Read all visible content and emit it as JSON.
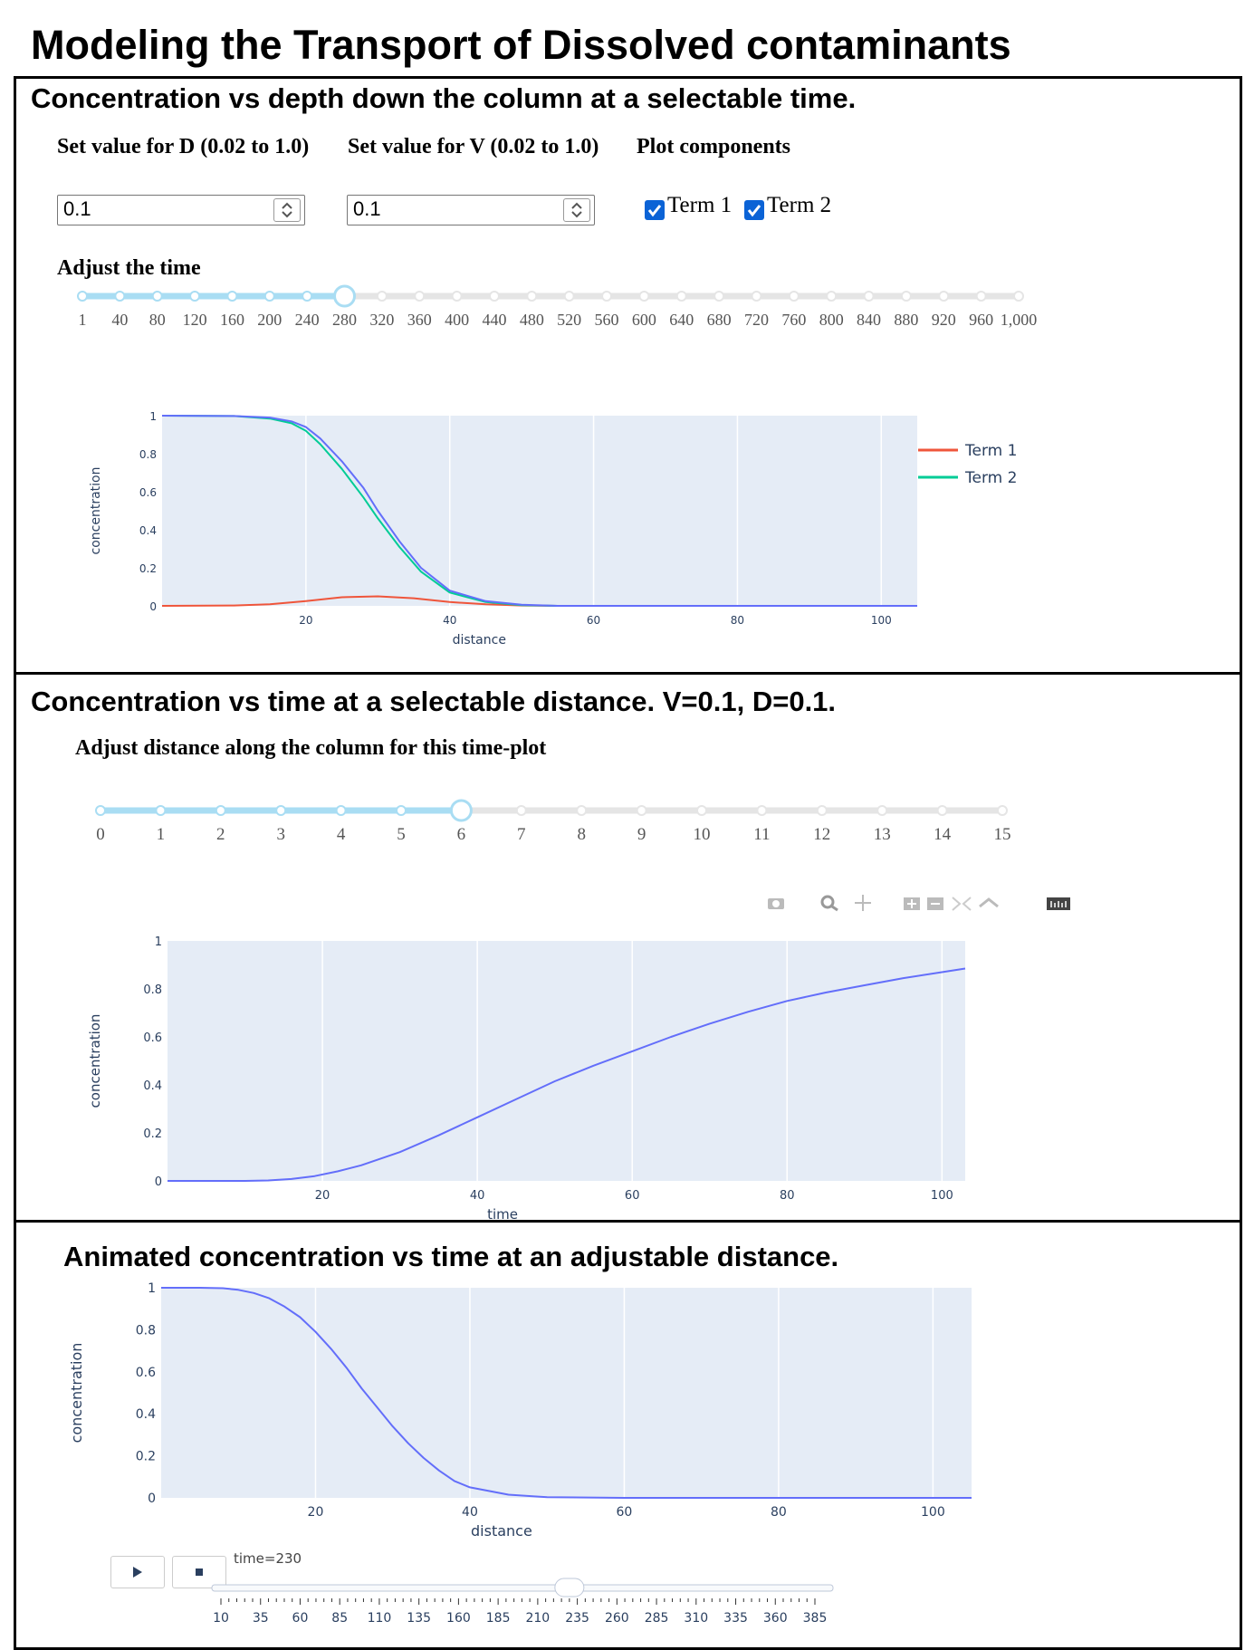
{
  "page_title": "Modeling the Transport of Dissolved contaminants",
  "panel1": {
    "title": "Concentration vs depth down the column at a selectable time.",
    "d_label": "Set value for D (0.02 to 1.0)",
    "v_label": "Set value for V (0.02 to 1.0)",
    "components_label": "Plot components",
    "d_value": "0.1",
    "v_value": "0.1",
    "term1_label": "Term 1",
    "term2_label": "Term 2",
    "term1_checked": true,
    "term2_checked": true,
    "time_label": "Adjust the time",
    "time_slider": {
      "ticks": [
        "1",
        "40",
        "80",
        "120",
        "160",
        "200",
        "240",
        "280",
        "320",
        "360",
        "400",
        "440",
        "480",
        "520",
        "560",
        "600",
        "640",
        "680",
        "720",
        "760",
        "800",
        "840",
        "880",
        "920",
        "960",
        "1,000"
      ],
      "selected": "280"
    }
  },
  "panel2": {
    "title": "Concentration vs time at a selectable distance. V=0.1, D=0.1.",
    "distance_label": "Adjust distance along the column for this time-plot",
    "distance_slider": {
      "ticks": [
        "0",
        "1",
        "2",
        "3",
        "4",
        "5",
        "6",
        "7",
        "8",
        "9",
        "10",
        "11",
        "12",
        "13",
        "14",
        "15"
      ],
      "selected": "6"
    },
    "toolbar_icons": [
      "camera-icon",
      "zoom-icon",
      "pan-icon",
      "zoom-in-icon",
      "zoom-out-icon",
      "autoscale-icon",
      "home-icon",
      "plotly-logo-icon"
    ]
  },
  "panel3": {
    "title": "Animated concentration vs time at an adjustable distance.",
    "play_icon": "play-icon",
    "stop_icon": "stop-icon",
    "current_label": "time=230",
    "anim_slider": {
      "ticks": [
        "10",
        "35",
        "60",
        "85",
        "110",
        "135",
        "160",
        "185",
        "210",
        "235",
        "260",
        "285",
        "310",
        "335",
        "360",
        "385"
      ],
      "value": 230
    }
  },
  "chart_data": [
    {
      "type": "line",
      "xlabel": "distance",
      "ylabel": "concentration",
      "xlim": [
        0,
        105
      ],
      "ylim": [
        0,
        1
      ],
      "x_ticks": [
        "20",
        "40",
        "60",
        "80",
        "100"
      ],
      "y_ticks": [
        "0",
        "0.2",
        "0.4",
        "0.6",
        "0.8",
        "1"
      ],
      "legend_position": "top-right",
      "series": [
        {
          "name": "Term 1",
          "color": "#ef553b",
          "x": [
            0,
            10,
            15,
            20,
            25,
            30,
            35,
            40,
            45,
            50,
            55,
            60,
            80,
            105
          ],
          "y": [
            0,
            0.002,
            0.008,
            0.025,
            0.045,
            0.05,
            0.04,
            0.02,
            0.008,
            0.002,
            0,
            0,
            0,
            0
          ]
        },
        {
          "name": "Term 2",
          "color": "#00cc96",
          "x": [
            0,
            10,
            15,
            18,
            20,
            22,
            25,
            28,
            30,
            33,
            36,
            40,
            45,
            50,
            55,
            60,
            80,
            105
          ],
          "y": [
            1,
            0.998,
            0.985,
            0.96,
            0.92,
            0.85,
            0.72,
            0.57,
            0.46,
            0.31,
            0.18,
            0.07,
            0.02,
            0.004,
            0,
            0,
            0,
            0
          ]
        },
        {
          "name": "",
          "color": "#636efa",
          "x": [
            0,
            10,
            15,
            18,
            20,
            22,
            25,
            28,
            30,
            33,
            36,
            40,
            45,
            50,
            55,
            60,
            80,
            105
          ],
          "y": [
            1,
            0.998,
            0.99,
            0.97,
            0.94,
            0.88,
            0.76,
            0.62,
            0.5,
            0.34,
            0.2,
            0.08,
            0.025,
            0.006,
            0,
            0,
            0,
            0
          ]
        }
      ]
    },
    {
      "type": "line",
      "xlabel": "time",
      "ylabel": "concentration",
      "xlim": [
        0,
        103
      ],
      "ylim": [
        0,
        1
      ],
      "x_ticks": [
        "20",
        "40",
        "60",
        "80",
        "100"
      ],
      "y_ticks": [
        "0",
        "0.2",
        "0.4",
        "0.6",
        "0.8",
        "1"
      ],
      "series": [
        {
          "name": "",
          "color": "#636efa",
          "x": [
            0,
            5,
            10,
            13,
            16,
            19,
            22,
            25,
            30,
            35,
            40,
            45,
            50,
            55,
            60,
            65,
            70,
            75,
            80,
            85,
            90,
            95,
            100,
            103
          ],
          "y": [
            0,
            0,
            0,
            0.002,
            0.008,
            0.02,
            0.04,
            0.065,
            0.12,
            0.19,
            0.265,
            0.34,
            0.415,
            0.48,
            0.54,
            0.6,
            0.655,
            0.705,
            0.75,
            0.785,
            0.815,
            0.845,
            0.87,
            0.885
          ]
        }
      ]
    },
    {
      "type": "line",
      "xlabel": "distance",
      "ylabel": "concentration",
      "xlim": [
        0,
        105
      ],
      "ylim": [
        0,
        1
      ],
      "x_ticks": [
        "20",
        "40",
        "60",
        "80",
        "100"
      ],
      "y_ticks": [
        "0",
        "0.2",
        "0.4",
        "0.6",
        "0.8",
        "1"
      ],
      "series": [
        {
          "name": "",
          "color": "#636efa",
          "x": [
            0,
            5,
            8,
            10,
            12,
            14,
            16,
            18,
            20,
            22,
            24,
            26,
            28,
            30,
            32,
            34,
            36,
            38,
            40,
            45,
            50,
            60,
            80,
            105
          ],
          "y": [
            1,
            1,
            0.998,
            0.99,
            0.975,
            0.95,
            0.91,
            0.86,
            0.79,
            0.71,
            0.62,
            0.52,
            0.43,
            0.34,
            0.26,
            0.19,
            0.13,
            0.08,
            0.05,
            0.015,
            0.003,
            0,
            0,
            0
          ]
        }
      ]
    }
  ]
}
